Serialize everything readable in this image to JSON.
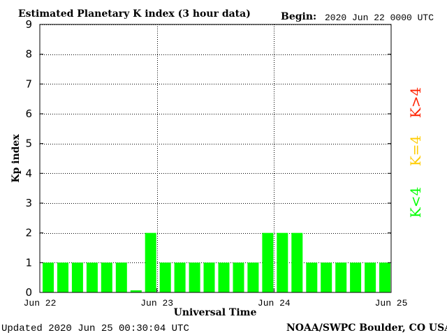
{
  "chart_data": {
    "type": "bar",
    "title": "Estimated Planetary K index (3 hour data)",
    "begin_label": "Begin:",
    "begin_value": "2020 Jun 22 0000 UTC",
    "xlabel": "Universal Time",
    "ylabel": "Kp index",
    "ylim": [
      0,
      9
    ],
    "yticks": [
      "0",
      "1",
      "2",
      "3",
      "4",
      "5",
      "6",
      "7",
      "8",
      "9"
    ],
    "xticks": [
      "Jun 22",
      "Jun 23",
      "Jun 24",
      "Jun 25"
    ],
    "grid": true,
    "bar_interval_hours": 3,
    "values": [
      1,
      1,
      1,
      1,
      1,
      1,
      0.07,
      2,
      1,
      1,
      1,
      1,
      1,
      1,
      1,
      2,
      2,
      2,
      1,
      1,
      1,
      1,
      1,
      1
    ],
    "bar_color": "#00ff00",
    "legend": [
      {
        "label": "K>4",
        "color": "#ff2200"
      },
      {
        "label": "K=4",
        "color": "#ffcc00"
      },
      {
        "label": "K<4",
        "color": "#00ff00"
      }
    ]
  },
  "footer": {
    "updated": "Updated 2020 Jun 25 00:30:04 UTC",
    "source": "NOAA/SWPC Boulder, CO USA"
  }
}
